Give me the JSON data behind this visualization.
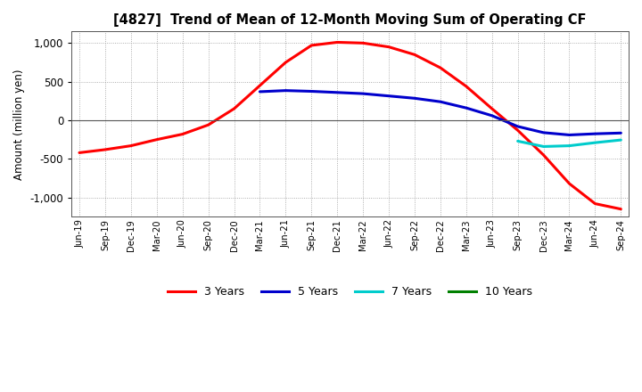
{
  "title": "[4827]  Trend of Mean of 12-Month Moving Sum of Operating CF",
  "ylabel": "Amount (million yen)",
  "background_color": "#ffffff",
  "plot_bg_color": "#ffffff",
  "grid_color": "#aaaaaa",
  "ylim": [
    -1250,
    1150
  ],
  "yticks": [
    -1000,
    -500,
    0,
    500,
    1000
  ],
  "x_labels": [
    "Jun-19",
    "Sep-19",
    "Dec-19",
    "Mar-20",
    "Jun-20",
    "Sep-20",
    "Dec-20",
    "Mar-21",
    "Jun-21",
    "Sep-21",
    "Dec-21",
    "Mar-22",
    "Jun-22",
    "Sep-22",
    "Dec-22",
    "Mar-23",
    "Jun-23",
    "Sep-23",
    "Dec-23",
    "Mar-24",
    "Jun-24",
    "Sep-24"
  ],
  "series": {
    "3yr": {
      "color": "#ff0000",
      "label": "3 Years",
      "x": [
        0,
        1,
        2,
        3,
        4,
        5,
        6,
        7,
        8,
        9,
        10,
        11,
        12,
        13,
        14,
        15,
        16,
        17,
        18,
        19,
        20,
        21
      ],
      "y": [
        -420,
        -380,
        -330,
        -250,
        -180,
        -60,
        150,
        450,
        750,
        970,
        1010,
        1000,
        950,
        850,
        680,
        440,
        150,
        -130,
        -450,
        -820,
        -1080,
        -1150
      ]
    },
    "5yr": {
      "color": "#0000cc",
      "label": "5 Years",
      "x": [
        7,
        8,
        9,
        10,
        11,
        12,
        13,
        14,
        15,
        16,
        17,
        18,
        19,
        20,
        21
      ],
      "y": [
        370,
        385,
        375,
        360,
        345,
        315,
        285,
        240,
        160,
        60,
        -80,
        -160,
        -190,
        -175,
        -165
      ]
    },
    "7yr": {
      "color": "#00cccc",
      "label": "7 Years",
      "x": [
        17,
        18,
        19,
        20,
        21
      ],
      "y": [
        -270,
        -340,
        -330,
        -290,
        -255
      ]
    },
    "10yr": {
      "color": "#008000",
      "label": "10 Years",
      "x": [],
      "y": []
    }
  }
}
